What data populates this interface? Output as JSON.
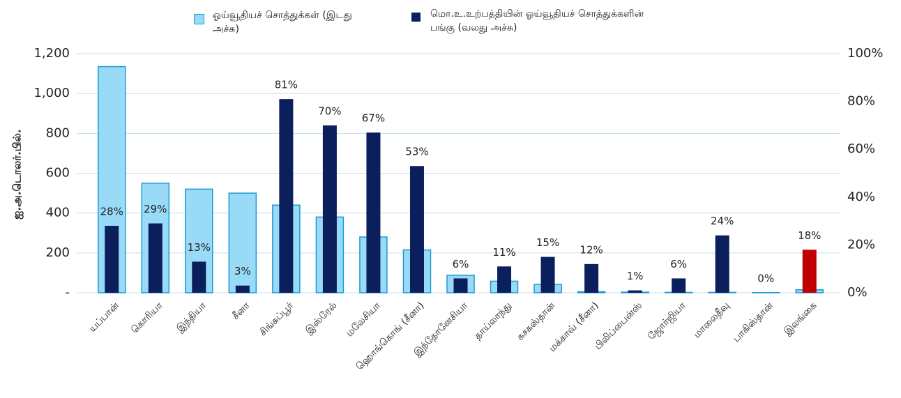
{
  "chart_data": {
    "type": "bar",
    "y_label": "ஐ.அ.டொலர்.பில்.",
    "categories": [
      "யப்பான்",
      "கொரியா",
      "இந்தியா",
      "சீனா",
      "சிங்கப்பூர்",
      "இஸ்ரேல்",
      "மலேசியா",
      "ஹொங்கொங் (சீனா)",
      "இந்தோனேசியா",
      "தாய்லாந்து",
      "கசகஸ்தான்",
      "மக்காவ் (சீனா)",
      "பிலிப்பைன்ஸ்",
      "ஜோர்ஜியா",
      "மாலைதீவு",
      "பாகிஸ்தான்",
      "இலங்கை"
    ],
    "series": [
      {
        "name": "ஓய்வூதியச் சொத்துக்கள் (இடது அச்சு)",
        "color": "#99dbf7",
        "edge": "#1a9ad6",
        "values": [
          1135,
          550,
          520,
          500,
          440,
          380,
          280,
          215,
          88,
          58,
          42,
          5,
          3,
          2,
          2,
          1,
          15
        ]
      },
      {
        "name": "மொ.உ.உற்பத்தியின் ஓய்வூதியச் சொத்துக்களின் பங்கு (வலது அச்சு)",
        "color": "#0b1f5c",
        "axis": "y2",
        "colors": [
          "#0b1f5c",
          "#0b1f5c",
          "#0b1f5c",
          "#0b1f5c",
          "#0b1f5c",
          "#0b1f5c",
          "#0b1f5c",
          "#0b1f5c",
          "#0b1f5c",
          "#0b1f5c",
          "#0b1f5c",
          "#0b1f5c",
          "#0b1f5c",
          "#0b1f5c",
          "#0b1f5c",
          "#0b1f5c",
          "#c00000"
        ],
        "values": [
          28,
          29,
          13,
          3,
          81,
          70,
          67,
          53,
          6,
          11,
          15,
          12,
          1,
          6,
          24,
          0,
          18
        ],
        "value_labels": [
          "28%",
          "29%",
          "13%",
          "3%",
          "81%",
          "70%",
          "67%",
          "53%",
          "6%",
          "11%",
          "15%",
          "12%",
          "1%",
          "6%",
          "24%",
          "0%",
          "18%"
        ]
      }
    ],
    "ylim": [
      0,
      1200
    ],
    "yticks": [
      {
        "value": 0,
        "label": "-"
      },
      200,
      400,
      600,
      800,
      {
        "value": 1000,
        "label": "1,000"
      },
      {
        "value": 1200,
        "label": "1,200"
      }
    ],
    "y2lim": [
      0,
      100
    ],
    "y2ticks": [
      {
        "value": 0,
        "label": "0%"
      },
      {
        "value": 20,
        "label": "20%"
      },
      {
        "value": 40,
        "label": "40%"
      },
      {
        "value": 60,
        "label": "60%"
      },
      {
        "value": 80,
        "label": "80%"
      },
      {
        "value": 100,
        "label": "100%"
      }
    ],
    "grid": true
  }
}
